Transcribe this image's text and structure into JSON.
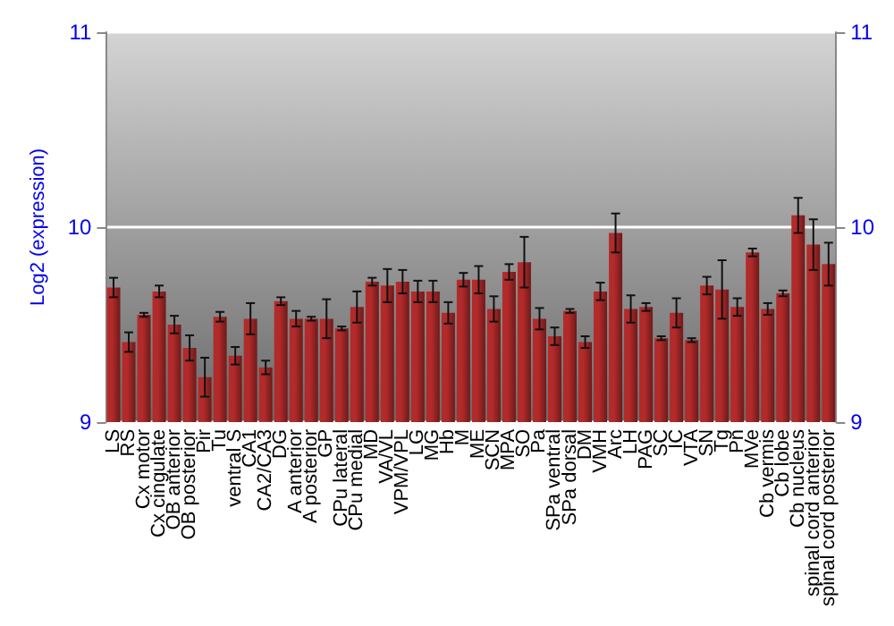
{
  "chart_data": {
    "type": "bar",
    "ylabel": "Log2 (expression)",
    "categories": [
      "LS",
      "RS",
      "Cx motor",
      "Cx cingulate",
      "OB anterior",
      "OB posterior",
      "Pir",
      "Tu",
      "ventral S",
      "CA1",
      "CA2/CA3",
      "DG",
      "A anterior",
      "A posterior",
      "GP",
      "CPu lateral",
      "CPu medial",
      "MD",
      "VA/VL",
      "VPM/VPL",
      "LG",
      "MG",
      "Hb",
      "M",
      "ME",
      "SCN",
      "MPA",
      "SO",
      "Pa",
      "SPa ventral",
      "SPa dorsal",
      "DM",
      "VMH",
      "Arc",
      "LH",
      "PAG",
      "SC",
      "IC",
      "VTA",
      "SN",
      "Tg",
      "Pn",
      "MVe",
      "Cb vermis",
      "Cb lobe",
      "Cb nucleus",
      "spinal cord anterior",
      "spinal cord posterior"
    ],
    "values": [
      9.69,
      9.41,
      9.55,
      9.67,
      9.5,
      9.38,
      9.23,
      9.54,
      9.34,
      9.53,
      9.28,
      9.62,
      9.53,
      9.53,
      9.53,
      9.48,
      9.59,
      9.72,
      9.7,
      9.72,
      9.67,
      9.67,
      9.56,
      9.73,
      9.73,
      9.58,
      9.77,
      9.82,
      9.53,
      9.44,
      9.57,
      9.41,
      9.67,
      9.97,
      9.58,
      9.59,
      9.43,
      9.56,
      9.42,
      9.7,
      9.68,
      9.59,
      9.87,
      9.58,
      9.66,
      10.06,
      9.91,
      9.81
    ],
    "errors": [
      0.05,
      0.05,
      0.01,
      0.03,
      0.045,
      0.065,
      0.1,
      0.025,
      0.045,
      0.08,
      0.035,
      0.02,
      0.04,
      0.01,
      0.1,
      0.01,
      0.08,
      0.02,
      0.085,
      0.06,
      0.055,
      0.055,
      0.055,
      0.035,
      0.07,
      0.065,
      0.04,
      0.13,
      0.055,
      0.045,
      0.01,
      0.03,
      0.045,
      0.1,
      0.07,
      0.02,
      0.01,
      0.075,
      0.01,
      0.045,
      0.15,
      0.045,
      0.02,
      0.03,
      0.015,
      0.09,
      0.13,
      0.11
    ],
    "color": "#b22a2a",
    "ylim": [
      9,
      11
    ],
    "yticks": [
      9,
      10,
      11
    ],
    "y2lim": [
      9,
      11
    ],
    "y2ticks": [
      9,
      10,
      11
    ],
    "grid": "y"
  }
}
